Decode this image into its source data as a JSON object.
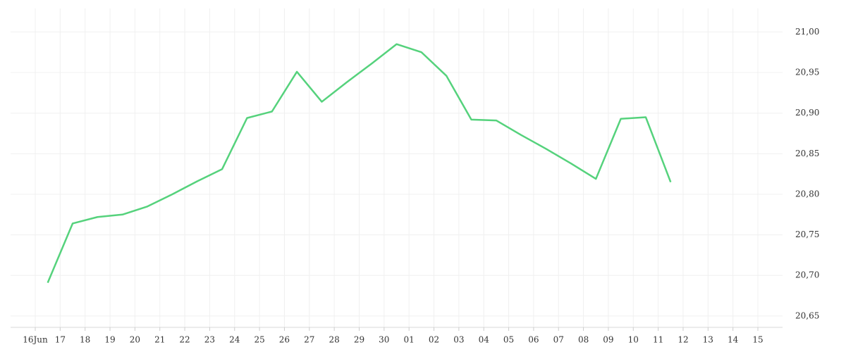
{
  "chart_data": {
    "type": "line",
    "categories": [
      "16Jun",
      "17",
      "18",
      "19",
      "20",
      "21",
      "22",
      "23",
      "24",
      "25",
      "26",
      "27",
      "28",
      "29",
      "30",
      "01",
      "02",
      "03",
      "04",
      "05",
      "06",
      "07",
      "08",
      "09",
      "10",
      "11",
      "12",
      "13",
      "14",
      "15"
    ],
    "series": [
      {
        "color": "#55d27c",
        "values": [
          20.691,
          20.764,
          20.772,
          20.775,
          20.785,
          20.8,
          20.816,
          20.831,
          20.894,
          20.902,
          20.951,
          20.914,
          20.938,
          20.961,
          20.985,
          20.975,
          20.946,
          20.892,
          20.891,
          20.873,
          20.856,
          20.838,
          20.819,
          20.893,
          20.895,
          20.815,
          null,
          null,
          null,
          null
        ]
      }
    ],
    "ylim": [
      20.636,
      21.029
    ],
    "yticks": [
      {
        "value": 20.65,
        "label": "20,65"
      },
      {
        "value": 20.7,
        "label": "20,70"
      },
      {
        "value": 20.75,
        "label": "20,75"
      },
      {
        "value": 20.8,
        "label": "20,80"
      },
      {
        "value": 20.85,
        "label": "20,85"
      },
      {
        "value": 20.9,
        "label": "20,90"
      },
      {
        "value": 20.95,
        "label": "20,95"
      },
      {
        "value": 21.0,
        "label": "21,00"
      }
    ],
    "grid": true
  }
}
